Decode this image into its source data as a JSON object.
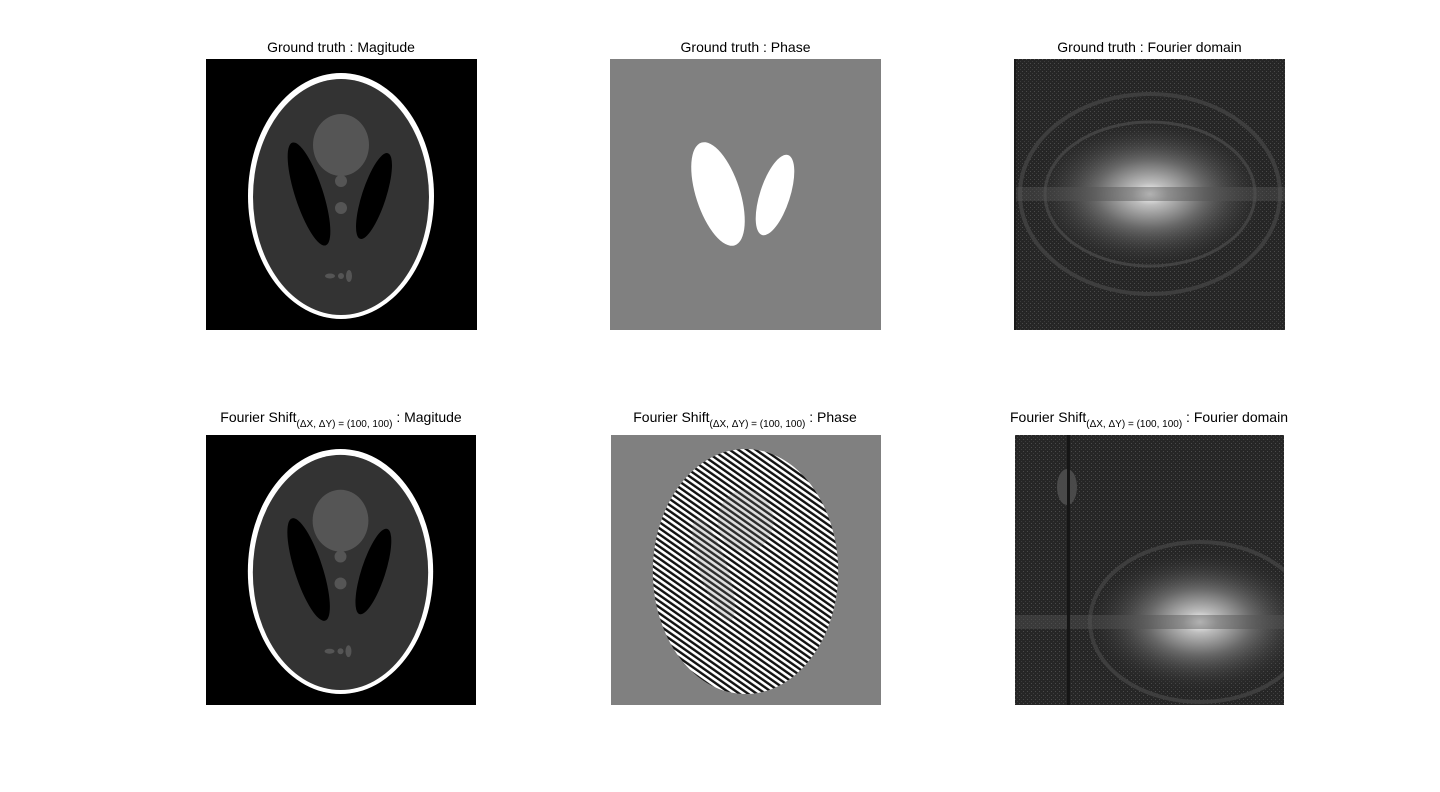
{
  "figure": {
    "panels": [
      {
        "title": "Ground truth : Magitude",
        "kind": "magnitude"
      },
      {
        "title": "Ground truth : Phase",
        "kind": "phase"
      },
      {
        "title": "Ground truth : Fourier domain",
        "kind": "fourier"
      },
      {
        "title_prefix": "Fourier Shift",
        "title_sub": "(ΔX, ΔY) =  (100, 100)",
        "title_suffix": " : Magitude",
        "kind": "magnitude"
      },
      {
        "title_prefix": "Fourier Shift",
        "title_sub": "(ΔX, ΔY) =  (100, 100)",
        "title_suffix": " : Phase",
        "kind": "phase-shifted"
      },
      {
        "title_prefix": "Fourier Shift",
        "title_sub": "(ΔX, ΔY) =  (100, 100)",
        "title_suffix": " : Fourier domain",
        "kind": "fourier-shifted"
      }
    ]
  },
  "colors": {
    "background": "#ffffff",
    "image_black": "#000000",
    "phantom_gray": "#333333",
    "phantom_light": "#555555",
    "phase_gray": "#808080",
    "white": "#ffffff"
  }
}
